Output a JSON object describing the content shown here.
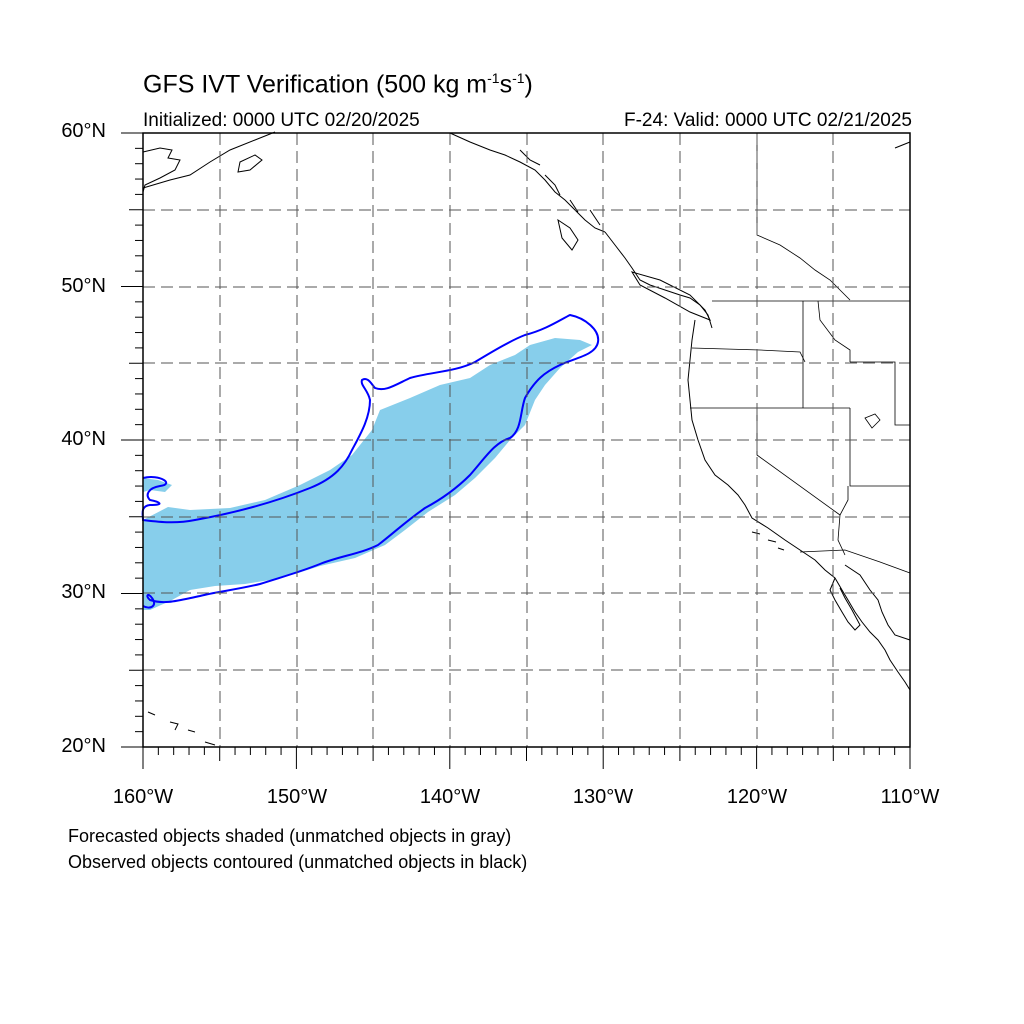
{
  "title": {
    "main": "GFS IVT Verification (500 kg m",
    "sup1": "-1",
    "mid": "s",
    "sup2": "-1",
    "end": ")"
  },
  "subtitle": {
    "initialized": "Initialized: 0000 UTC 02/20/2025",
    "valid": "F-24: Valid: 0000 UTC 02/21/2025"
  },
  "map": {
    "extent": {
      "lon_min": -160,
      "lon_max": -110,
      "lat_min": 20,
      "lat_max": 60
    },
    "lat_labels": [
      "60°N",
      "50°N",
      "40°N",
      "30°N",
      "20°N"
    ],
    "lon_labels": [
      "160°W",
      "150°W",
      "140°W",
      "130°W",
      "120°W",
      "110°W"
    ],
    "grid_style": "dashed",
    "colors": {
      "forecast_fill": "#87ceeb",
      "observed_contour": "#0000ff",
      "coastline": "#000000"
    }
  },
  "legend": {
    "line1": "Forecasted objects shaded (unmatched objects in gray)",
    "line2": "Observed objects contoured (unmatched objects in black)"
  }
}
